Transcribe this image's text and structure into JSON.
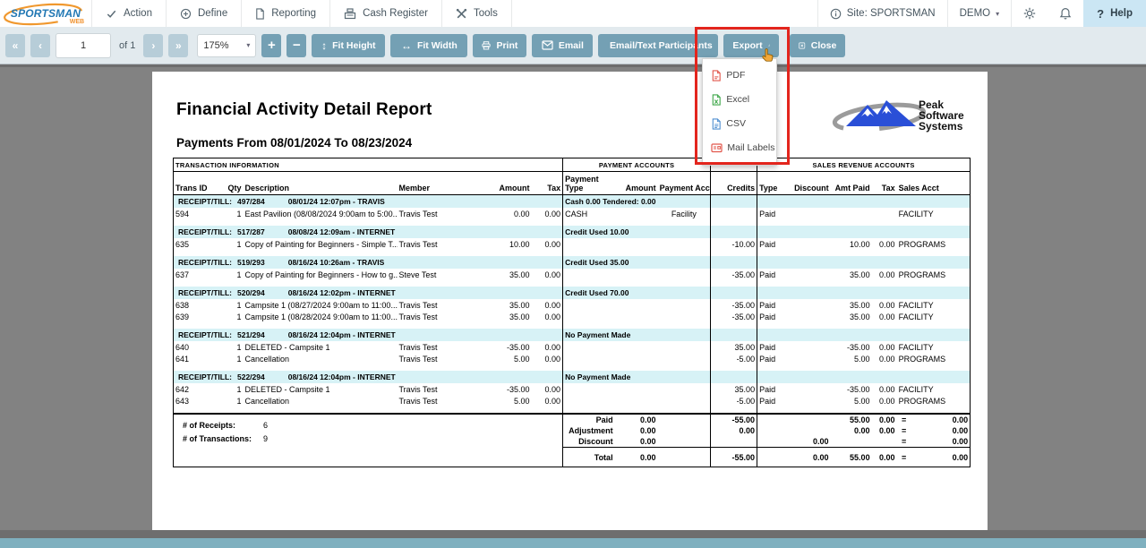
{
  "navbar": {
    "brand": {
      "name": "SPORTSMAN",
      "sub": "WEB"
    },
    "menus": [
      {
        "label": "Action",
        "icon": "check"
      },
      {
        "label": "Define",
        "icon": "circle-plus"
      },
      {
        "label": "Reporting",
        "icon": "file"
      },
      {
        "label": "Cash Register",
        "icon": "register"
      },
      {
        "label": "Tools",
        "icon": "tools"
      }
    ],
    "site_label": "Site: SPORTSMAN",
    "env_label": "DEMO",
    "help_label": "Help"
  },
  "toolbar": {
    "page_value": "1",
    "page_of": "of 1",
    "zoom_value": "175%",
    "fit_height": "Fit Height",
    "fit_width": "Fit Width",
    "print": "Print",
    "email": "Email",
    "email_text": "Email/Text Participants",
    "export": "Export",
    "close": "Close"
  },
  "export_menu": {
    "items": [
      {
        "label": "PDF",
        "icon": "file-pdf",
        "color": "#e2574c"
      },
      {
        "label": "Excel",
        "icon": "file-excel",
        "color": "#3fa74a"
      },
      {
        "label": "CSV",
        "icon": "file-csv",
        "color": "#4f8fd0"
      },
      {
        "label": "Mail Labels",
        "icon": "mail-labels",
        "color": "#e2574c"
      }
    ]
  },
  "report": {
    "title": "Financial Activity Detail Report",
    "subtitle": "Payments From 08/01/2024 To 08/23/2024",
    "vendor_logo_lines": [
      "Peak",
      "Software",
      "Systems"
    ],
    "table": {
      "section_titles": [
        "TRANSACTION INFORMATION",
        "PAYMENT ACCOUNTS",
        "SALES REVENUE ACCOUNTS"
      ],
      "col_headers": [
        "Trans ID",
        "Qty",
        "Description",
        "Member",
        "Amount",
        "Tax",
        "Payment Type",
        "Amount",
        "Payment Acct",
        "Credits",
        "Type",
        "Discount",
        "Amt Paid",
        "Tax",
        "Sales Acct"
      ],
      "receipt_label": "RECEIPT/TILL:",
      "groups": [
        {
          "receipt": "497/284",
          "datetime": "08/01/24 12:07pm - TRAVIS",
          "payment": "Cash 0.00  Tendered: 0.00",
          "rows": [
            {
              "id": "594",
              "qty": "1",
              "desc": "East Pavilion (08/08/2024 9:00am to 5:00...",
              "member": "Travis Test",
              "amount": "0.00",
              "tax": "0.00",
              "ptype": "CASH",
              "pamount": "",
              "pacct": "Facility",
              "credits": "",
              "stype": "Paid",
              "discount": "",
              "amt_paid": "",
              "stax": "",
              "sacct": "FACILITY"
            }
          ]
        },
        {
          "receipt": "517/287",
          "datetime": "08/08/24 12:09am - INTERNET",
          "payment": "Credit Used 10.00",
          "rows": [
            {
              "id": "635",
              "qty": "1",
              "desc": "Copy of Painting for Beginners - Simple T...",
              "member": "Travis Test",
              "amount": "10.00",
              "tax": "0.00",
              "ptype": "",
              "pamount": "",
              "pacct": "",
              "credits": "-10.00",
              "stype": "Paid",
              "discount": "",
              "amt_paid": "10.00",
              "stax": "0.00",
              "sacct": "PROGRAMS"
            }
          ]
        },
        {
          "receipt": "519/293",
          "datetime": "08/16/24 10:26am - TRAVIS",
          "payment": "Credit Used 35.00",
          "rows": [
            {
              "id": "637",
              "qty": "1",
              "desc": "Copy of Painting for Beginners - How to g...",
              "member": "Steve Test",
              "amount": "35.00",
              "tax": "0.00",
              "ptype": "",
              "pamount": "",
              "pacct": "",
              "credits": "-35.00",
              "stype": "Paid",
              "discount": "",
              "amt_paid": "35.00",
              "stax": "0.00",
              "sacct": "PROGRAMS"
            }
          ]
        },
        {
          "receipt": "520/294",
          "datetime": "08/16/24 12:02pm - INTERNET",
          "payment": "Credit Used 70.00",
          "rows": [
            {
              "id": "638",
              "qty": "1",
              "desc": "Campsite 1 (08/27/2024 9:00am to 11:00...",
              "member": "Travis Test",
              "amount": "35.00",
              "tax": "0.00",
              "ptype": "",
              "pamount": "",
              "pacct": "",
              "credits": "-35.00",
              "stype": "Paid",
              "discount": "",
              "amt_paid": "35.00",
              "stax": "0.00",
              "sacct": "FACILITY"
            },
            {
              "id": "639",
              "qty": "1",
              "desc": "Campsite 1 (08/28/2024 9:00am to 11:00...",
              "member": "Travis Test",
              "amount": "35.00",
              "tax": "0.00",
              "ptype": "",
              "pamount": "",
              "pacct": "",
              "credits": "-35.00",
              "stype": "Paid",
              "discount": "",
              "amt_paid": "35.00",
              "stax": "0.00",
              "sacct": "FACILITY"
            }
          ]
        },
        {
          "receipt": "521/294",
          "datetime": "08/16/24 12:04pm - INTERNET",
          "payment": "No Payment Made",
          "rows": [
            {
              "id": "640",
              "qty": "1",
              "desc": "DELETED - Campsite 1",
              "member": "Travis Test",
              "amount": "-35.00",
              "tax": "0.00",
              "ptype": "",
              "pamount": "",
              "pacct": "",
              "credits": "35.00",
              "stype": "Paid",
              "discount": "",
              "amt_paid": "-35.00",
              "stax": "0.00",
              "sacct": "FACILITY"
            },
            {
              "id": "641",
              "qty": "1",
              "desc": "Cancellation",
              "member": "Travis Test",
              "amount": "5.00",
              "tax": "0.00",
              "ptype": "",
              "pamount": "",
              "pacct": "",
              "credits": "-5.00",
              "stype": "Paid",
              "discount": "",
              "amt_paid": "5.00",
              "stax": "0.00",
              "sacct": "PROGRAMS"
            }
          ]
        },
        {
          "receipt": "522/294",
          "datetime": "08/16/24 12:04pm - INTERNET",
          "payment": "No Payment Made",
          "rows": [
            {
              "id": "642",
              "qty": "1",
              "desc": "DELETED - Campsite 1",
              "member": "Travis Test",
              "amount": "-35.00",
              "tax": "0.00",
              "ptype": "",
              "pamount": "",
              "pacct": "",
              "credits": "35.00",
              "stype": "Paid",
              "discount": "",
              "amt_paid": "-35.00",
              "stax": "0.00",
              "sacct": "FACILITY"
            },
            {
              "id": "643",
              "qty": "1",
              "desc": "Cancellation",
              "member": "Travis Test",
              "amount": "5.00",
              "tax": "0.00",
              "ptype": "",
              "pamount": "",
              "pacct": "",
              "credits": "-5.00",
              "stype": "Paid",
              "discount": "",
              "amt_paid": "5.00",
              "stax": "0.00",
              "sacct": "PROGRAMS"
            }
          ]
        }
      ],
      "summary": {
        "counts": [
          {
            "label": "# of Receipts:",
            "value": "6"
          },
          {
            "label": "# of Transactions:",
            "value": "9"
          }
        ],
        "rows": [
          {
            "label": "Paid",
            "amount": "0.00",
            "credits": "-55.00",
            "discount": "",
            "amt_paid": "55.00",
            "tax": "0.00",
            "eq": "=",
            "total": "0.00"
          },
          {
            "label": "Adjustment",
            "amount": "0.00",
            "credits": "0.00",
            "discount": "",
            "amt_paid": "0.00",
            "tax": "0.00",
            "eq": "=",
            "total": "0.00"
          },
          {
            "label": "Discount",
            "amount": "0.00",
            "credits": "",
            "discount": "0.00",
            "amt_paid": "",
            "tax": "",
            "eq": "=",
            "total": "0.00"
          }
        ],
        "total_row": {
          "label": "Total",
          "amount": "0.00",
          "credits": "-55.00",
          "discount": "0.00",
          "amt_paid": "55.00",
          "tax": "0.00",
          "eq": "=",
          "total": "0.00"
        }
      }
    }
  },
  "colors": {
    "annotation_red": "#e3251d",
    "button_slate": "#74a0b4",
    "button_disabled": "#b7cdd8",
    "group_header_cyan": "#d7f2f6",
    "scrollbar_teal": "#7fb0bf",
    "help_bg": "#cbe6f4"
  }
}
